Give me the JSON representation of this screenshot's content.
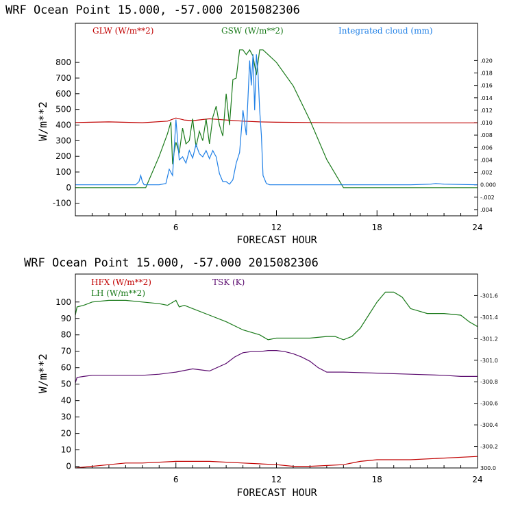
{
  "chart_data": [
    {
      "type": "line",
      "title": "WRF   Ocean Point   15.000, -57.000  2015082306",
      "xlabel": "FORECAST HOUR",
      "ylabel": "W/m**2",
      "xlim": [
        0,
        24
      ],
      "ylim": [
        -180,
        1050
      ],
      "xticks": [
        6,
        12,
        18,
        24
      ],
      "yticks": [
        -100,
        0,
        100,
        200,
        300,
        400,
        500,
        600,
        700,
        800
      ],
      "y2lim": [
        -0.005,
        0.026
      ],
      "y2ticks": [
        -0.004,
        -0.002,
        0.0,
        0.002,
        0.004,
        0.006,
        0.008,
        0.01,
        0.012,
        0.014,
        0.016,
        0.018,
        0.02
      ],
      "y2ticklabels": [
        ".004",
        "-.002",
        "0.000",
        ".002",
        ".004",
        ".006",
        ".008",
        ".010",
        ".012",
        ".014",
        ".016",
        ".018",
        ".020"
      ],
      "series": [
        {
          "name": "GLW (W/m**2)",
          "color": "#c00000",
          "axis": "left",
          "x": [
            0,
            2,
            4,
            5.5,
            6,
            6.5,
            7,
            8,
            9,
            10,
            11,
            12,
            14,
            16,
            18,
            20,
            22,
            24
          ],
          "values": [
            416,
            420,
            415,
            425,
            445,
            432,
            428,
            440,
            432,
            425,
            420,
            418,
            416,
            414,
            414,
            414,
            414,
            414
          ]
        },
        {
          "name": "GSW (W/m**2)",
          "color": "#1a7a1a",
          "axis": "left",
          "x": [
            0,
            4.0,
            4.2,
            5.0,
            5.5,
            5.7,
            5.8,
            5.9,
            6.0,
            6.2,
            6.4,
            6.6,
            6.8,
            7.0,
            7.2,
            7.4,
            7.6,
            7.8,
            8.0,
            8.2,
            8.4,
            8.6,
            8.8,
            9.0,
            9.2,
            9.4,
            9.6,
            9.8,
            10.0,
            10.2,
            10.4,
            10.6,
            10.8,
            11.0,
            11.2,
            11.5,
            12,
            13,
            14,
            15,
            16,
            16.3,
            24
          ],
          "values": [
            0,
            0,
            0,
            200,
            345,
            420,
            150,
            230,
            290,
            220,
            380,
            280,
            300,
            440,
            260,
            360,
            300,
            440,
            280,
            450,
            520,
            400,
            330,
            600,
            400,
            690,
            700,
            880,
            880,
            850,
            880,
            840,
            720,
            880,
            880,
            850,
            800,
            650,
            430,
            180,
            0,
            0,
            0
          ]
        },
        {
          "name": "Integrated cloud (mm)",
          "color": "#1e7fe6",
          "axis": "right",
          "x": [
            0,
            3.6,
            3.8,
            3.9,
            4.0,
            4.1,
            4.2,
            4.3,
            5.0,
            5.4,
            5.6,
            5.8,
            6.0,
            6.2,
            6.4,
            6.6,
            6.8,
            7.0,
            7.2,
            7.4,
            7.6,
            7.8,
            8.0,
            8.2,
            8.4,
            8.6,
            8.8,
            9.0,
            9.2,
            9.4,
            9.6,
            9.8,
            10.0,
            10.2,
            10.4,
            10.5,
            10.6,
            10.7,
            10.8,
            10.9,
            11.0,
            11.1,
            11.2,
            11.4,
            11.6,
            12,
            16,
            20,
            21.2,
            21.5,
            22,
            24
          ],
          "values": [
            0,
            0,
            0.0005,
            0.0015,
            0.0005,
            0,
            0,
            0,
            0,
            0.0002,
            0.0025,
            0.0015,
            0.0105,
            0.004,
            0.0045,
            0.0035,
            0.0055,
            0.0043,
            0.0065,
            0.005,
            0.0045,
            0.0055,
            0.0042,
            0.0055,
            0.0045,
            0.0018,
            0.0005,
            0.0005,
            0.0001,
            0.0008,
            0.0035,
            0.0052,
            0.012,
            0.008,
            0.02,
            0.016,
            0.021,
            0.012,
            0.021,
            0.018,
            0.012,
            0.008,
            0.0015,
            0.0002,
            0,
            0,
            0,
            0,
            0.0001,
            0.0002,
            0.0001,
            0
          ]
        }
      ]
    },
    {
      "type": "line",
      "title": "WRF   Ocean Point   15.000, -57.000  2015082306",
      "xlabel": "FORECAST HOUR",
      "ylabel": "W/m**2",
      "xlim": [
        0,
        24
      ],
      "ylim": [
        -1,
        117
      ],
      "xticks": [
        6,
        12,
        18,
        24
      ],
      "yticks": [
        0,
        10,
        20,
        30,
        40,
        50,
        60,
        70,
        80,
        90,
        100
      ],
      "y2lim": [
        300.0,
        301.8
      ],
      "y2ticks": [
        300.0,
        300.2,
        300.4,
        300.6,
        300.8,
        301.0,
        301.2,
        301.4,
        301.6
      ],
      "y2ticklabels": [
        "300.0",
        "-300.2",
        "-300.4",
        "-300.6",
        "-300.8",
        "-301.0",
        "-301.2",
        "-301.4",
        "-301.6"
      ],
      "series": [
        {
          "name": "HFX (W/m**2)",
          "color": "#c00000",
          "axis": "left",
          "x": [
            0,
            1,
            2,
            3,
            4,
            6,
            8,
            10,
            12,
            13,
            14,
            16,
            17,
            18,
            20,
            22,
            24
          ],
          "values": [
            -1,
            0,
            1,
            2,
            2,
            3,
            3,
            2,
            1,
            0,
            0,
            1,
            3,
            4,
            4,
            5,
            6
          ]
        },
        {
          "name": "LH (W/m**2)",
          "color": "#1a7a1a",
          "axis": "left",
          "x": [
            0,
            0.1,
            0.5,
            1,
            2,
            3,
            4,
            5,
            5.5,
            6,
            6.2,
            6.5,
            7,
            8,
            9,
            10,
            11,
            11.5,
            12,
            13,
            14,
            15,
            15.5,
            16,
            16.5,
            17,
            17.5,
            18,
            18.5,
            19,
            19.5,
            20,
            21,
            22,
            23,
            23.5,
            24
          ],
          "values": [
            92,
            97,
            98,
            100,
            101,
            101,
            100,
            99,
            98,
            101,
            97,
            98,
            96,
            92,
            88,
            83,
            80,
            77,
            78,
            78,
            78,
            79,
            79,
            77,
            79,
            84,
            92,
            100,
            106,
            106,
            103,
            96,
            93,
            93,
            92,
            88,
            85
          ]
        },
        {
          "name": "TSK (K)",
          "color": "#5a0a6e",
          "axis": "right",
          "x": [
            0,
            0.1,
            0.5,
            1,
            2,
            3,
            4,
            5,
            6,
            7,
            8,
            9,
            9.5,
            10,
            10.5,
            11,
            11.5,
            12,
            12.5,
            13,
            13.5,
            14,
            14.5,
            15,
            16,
            18,
            20,
            22,
            23,
            24
          ],
          "values": [
            300.79,
            300.84,
            300.85,
            300.86,
            300.86,
            300.86,
            300.86,
            300.87,
            300.89,
            300.92,
            300.9,
            300.97,
            301.03,
            301.07,
            301.08,
            301.08,
            301.09,
            301.09,
            301.08,
            301.06,
            301.03,
            300.99,
            300.93,
            300.89,
            300.89,
            300.88,
            300.87,
            300.86,
            300.85,
            300.85
          ]
        }
      ]
    }
  ]
}
